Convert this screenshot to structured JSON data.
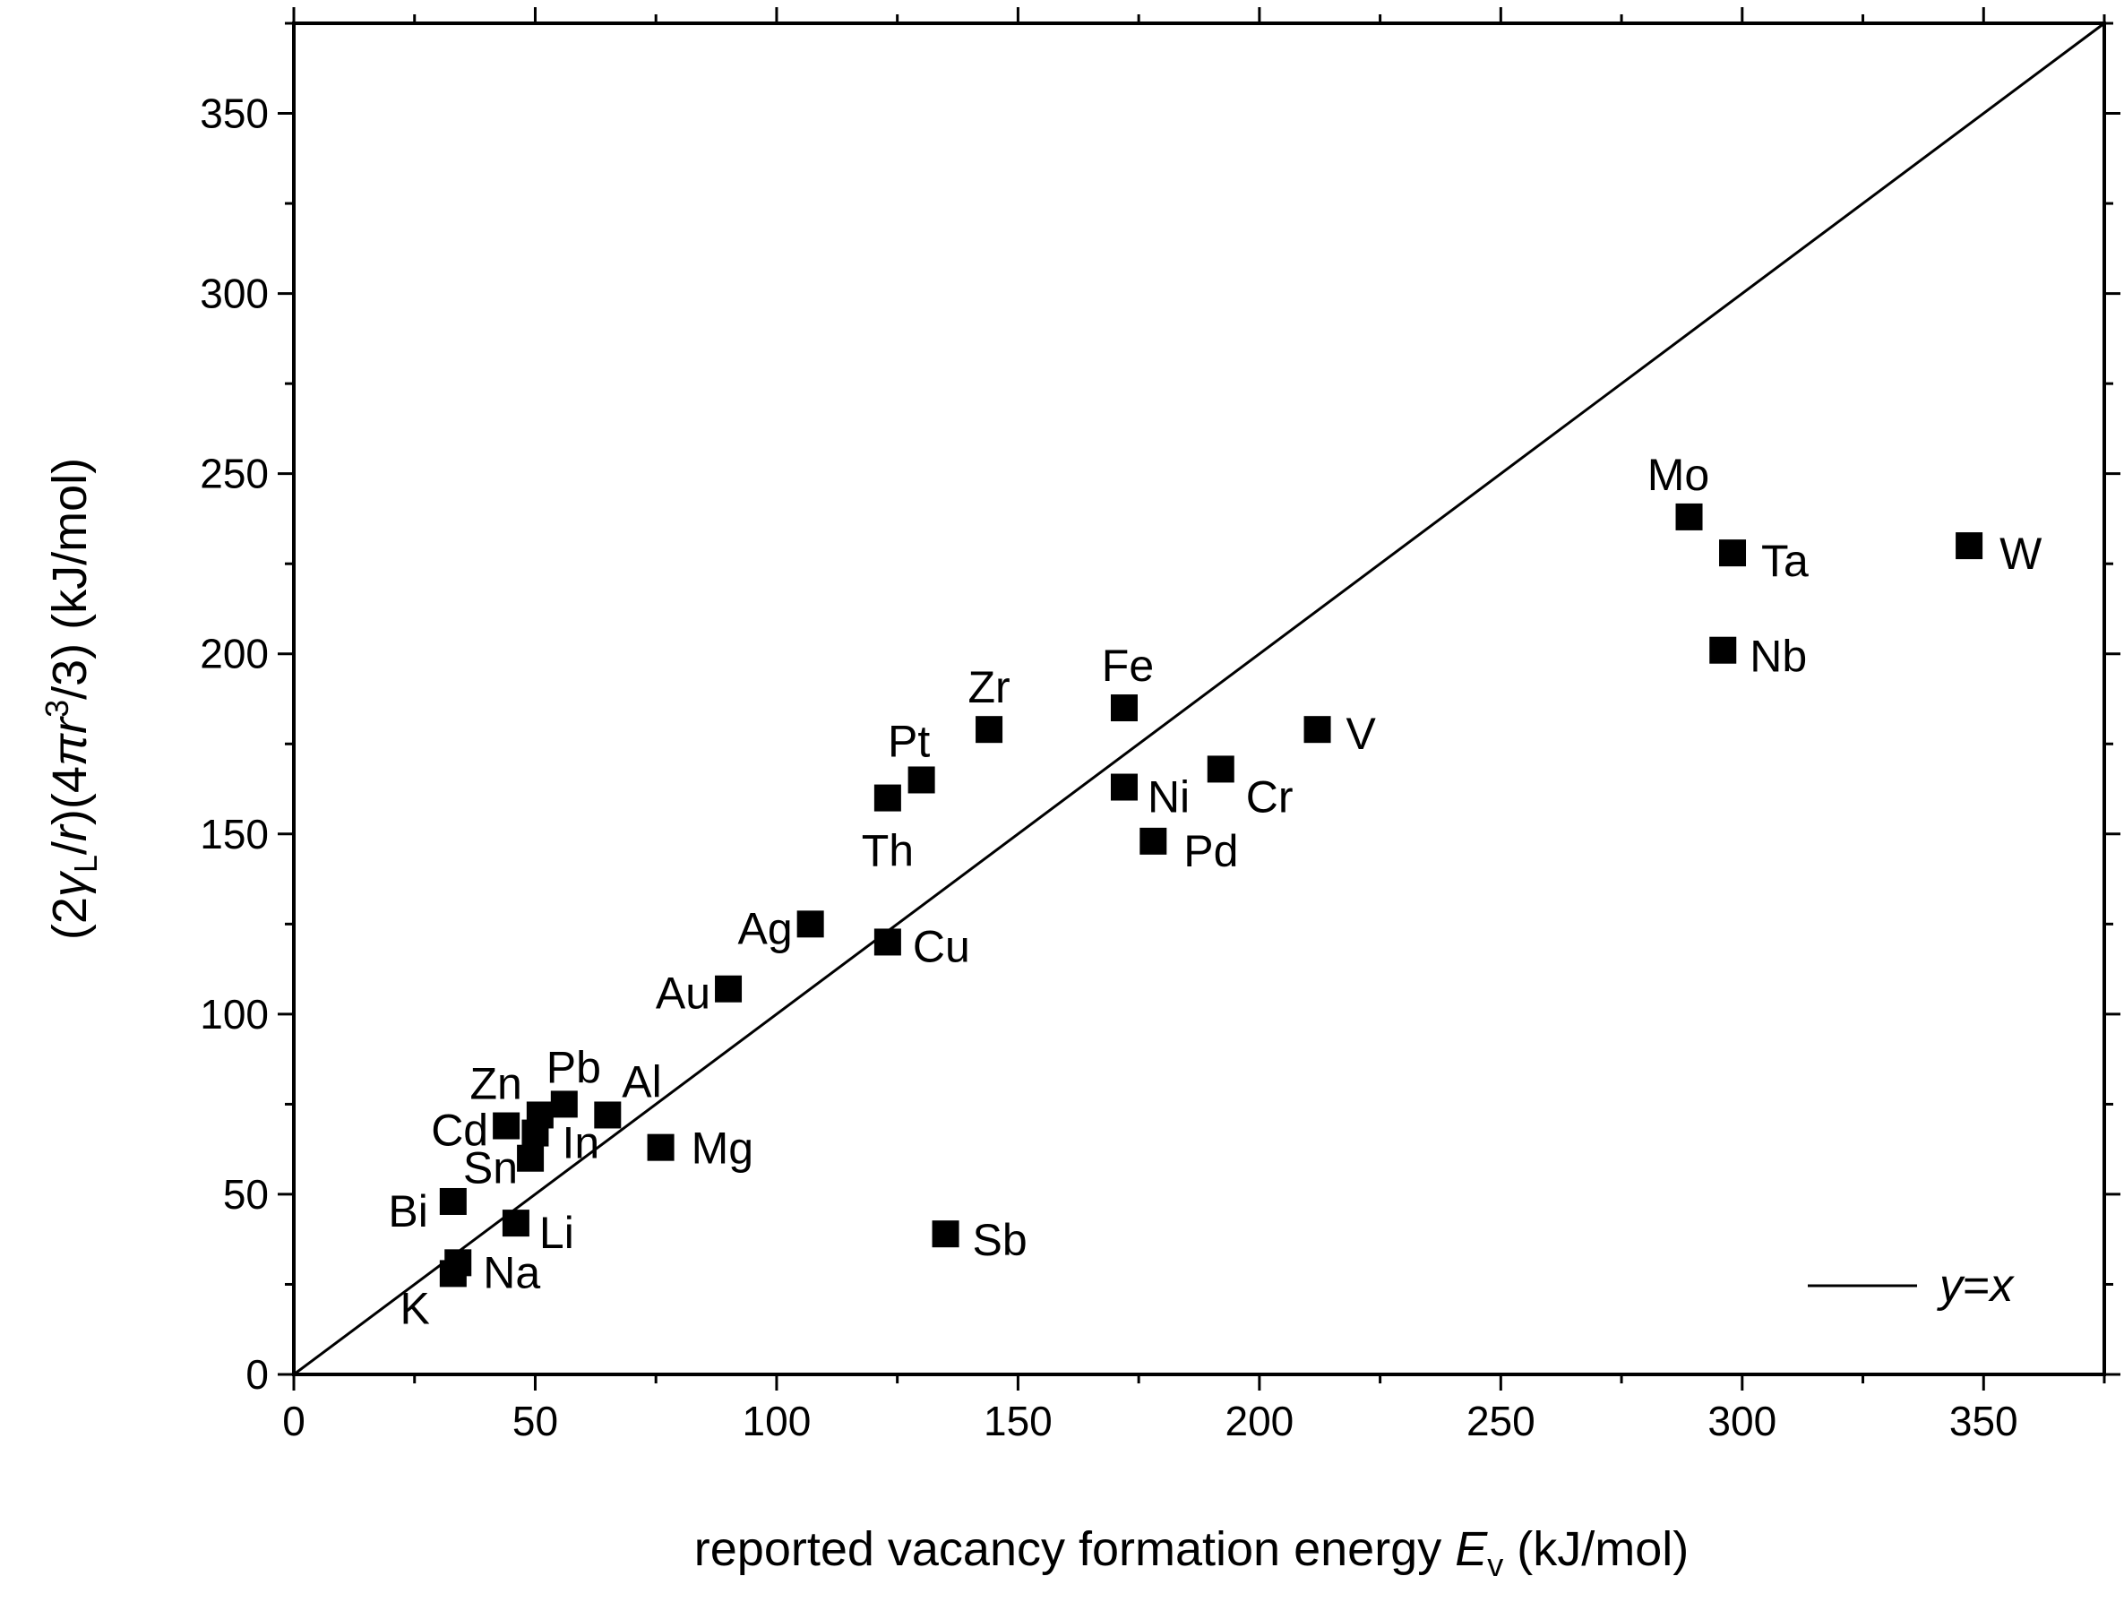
{
  "chart_data": {
    "type": "scatter",
    "title": "",
    "xlabel": {
      "prefix": "reported vacancy formation energy ",
      "symbol": "E",
      "subscript": "v",
      "suffix": " (kJ/mol)"
    },
    "ylabel": {
      "p1": "(2",
      "gamma": "γ",
      "sub": "L",
      "p2": "/",
      "r1": "r",
      "p3": ")(4",
      "pi": "π",
      "r2": "r",
      "sup": "3",
      "p4": "/3) (kJ/mol)"
    },
    "xlim": [
      0,
      375
    ],
    "ylim": [
      0,
      375
    ],
    "xticks": [
      0,
      50,
      100,
      150,
      200,
      250,
      300,
      350
    ],
    "yticks": [
      0,
      50,
      100,
      150,
      200,
      250,
      300,
      350
    ],
    "grid": false,
    "legend": {
      "position": "bottom-right",
      "y_label": "y",
      "eq": "=",
      "x_label": "x"
    },
    "reference_line": {
      "name": "y=x",
      "from": [
        0,
        0
      ],
      "to": [
        375,
        375
      ]
    },
    "points": [
      {
        "label": "K",
        "x": 33,
        "y": 28
      },
      {
        "label": "Na",
        "x": 34,
        "y": 31
      },
      {
        "label": "Bi",
        "x": 33,
        "y": 48
      },
      {
        "label": "Li",
        "x": 46,
        "y": 42
      },
      {
        "label": "Sn",
        "x": 49,
        "y": 60
      },
      {
        "label": "Cd",
        "x": 44,
        "y": 69
      },
      {
        "label": "In",
        "x": 50,
        "y": 67
      },
      {
        "label": "Zn",
        "x": 51,
        "y": 72
      },
      {
        "label": "Pb",
        "x": 56,
        "y": 75
      },
      {
        "label": "Al",
        "x": 65,
        "y": 72
      },
      {
        "label": "Mg",
        "x": 76,
        "y": 63
      },
      {
        "label": "Au",
        "x": 90,
        "y": 107
      },
      {
        "label": "Ag",
        "x": 107,
        "y": 125
      },
      {
        "label": "Cu",
        "x": 123,
        "y": 120
      },
      {
        "label": "Th",
        "x": 123,
        "y": 160
      },
      {
        "label": "Pt",
        "x": 130,
        "y": 165
      },
      {
        "label": "Sb",
        "x": 135,
        "y": 39
      },
      {
        "label": "Zr",
        "x": 144,
        "y": 179
      },
      {
        "label": "Fe",
        "x": 172,
        "y": 185
      },
      {
        "label": "Ni",
        "x": 172,
        "y": 163
      },
      {
        "label": "Pd",
        "x": 178,
        "y": 148
      },
      {
        "label": "Cr",
        "x": 192,
        "y": 168
      },
      {
        "label": "V",
        "x": 212,
        "y": 179
      },
      {
        "label": "Mo",
        "x": 289,
        "y": 238
      },
      {
        "label": "Ta",
        "x": 298,
        "y": 228
      },
      {
        "label": "Nb",
        "x": 296,
        "y": 201
      },
      {
        "label": "W",
        "x": 347,
        "y": 230
      }
    ]
  }
}
